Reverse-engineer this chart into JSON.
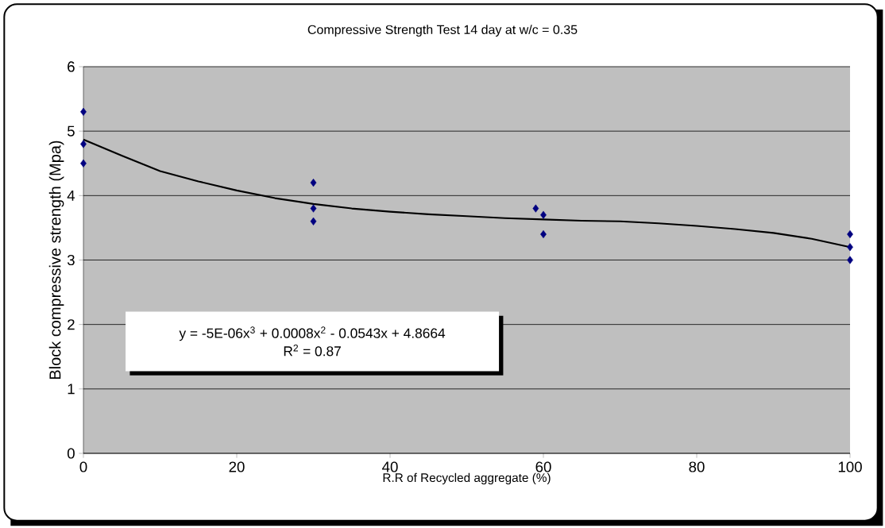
{
  "chart_data": {
    "type": "scatter",
    "title": "Compressive Strength Test 14 day at w/c = 0.35",
    "xlabel": "R.R of Recycled aggregate (%)",
    "ylabel": "Block compressive strength (Mpa)",
    "xlim": [
      0,
      100
    ],
    "ylim": [
      0,
      6
    ],
    "xticks": [
      0,
      20,
      40,
      60,
      80,
      100
    ],
    "yticks": [
      0,
      1,
      2,
      3,
      4,
      5,
      6
    ],
    "grid": "y",
    "annotations": [
      "y = -5E-06x$^{3}$ + 0.0008x$^{2}$ - 0.0543x + 4.8664",
      "R$^{2}$ = 0.87"
    ],
    "series": [
      {
        "type": "scatter",
        "marker": "diamond",
        "color": "#000080",
        "x": [
          0,
          0,
          0,
          30,
          30,
          30,
          59,
          60,
          60,
          100,
          100,
          100
        ],
        "values": [
          5.3,
          4.8,
          4.5,
          4.2,
          3.8,
          3.6,
          3.8,
          3.7,
          3.4,
          3.4,
          3.2,
          3.0
        ]
      },
      {
        "type": "line",
        "marker": "none",
        "color": "#000000",
        "x": [
          0,
          5,
          10,
          15,
          20,
          25,
          30,
          35,
          40,
          45,
          50,
          55,
          60,
          65,
          70,
          75,
          80,
          85,
          90,
          95,
          100
        ],
        "values": [
          4.87,
          4.62,
          4.38,
          4.22,
          4.08,
          3.96,
          3.87,
          3.8,
          3.75,
          3.71,
          3.68,
          3.65,
          3.63,
          3.61,
          3.6,
          3.57,
          3.53,
          3.48,
          3.42,
          3.33,
          3.2
        ]
      }
    ]
  }
}
